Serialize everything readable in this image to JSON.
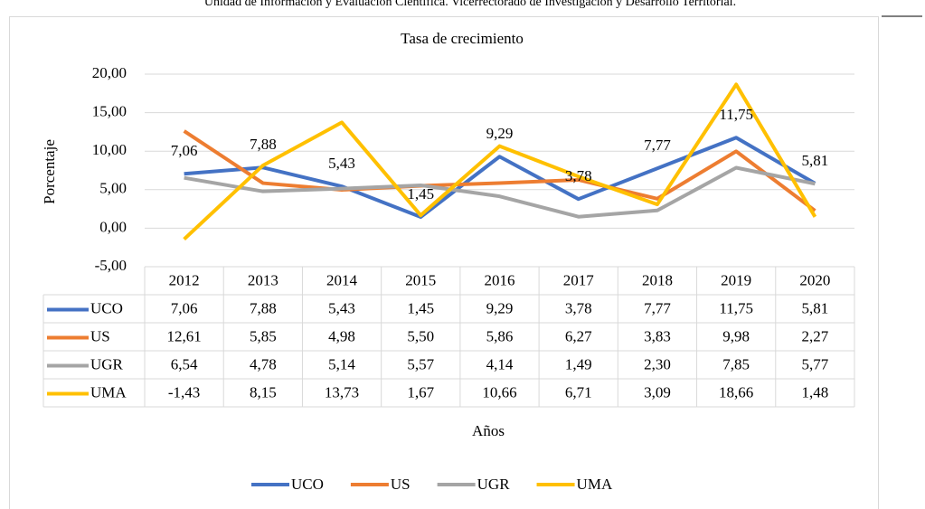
{
  "header": {
    "text": "Unidad de Información y Evaluación Científica. Vicerrectorado de Investigación y Desarrollo Territorial."
  },
  "chart_data": {
    "type": "line",
    "title": "Tasa de crecimiento",
    "ylabel": "Porcentaje",
    "xlabel": "Años",
    "categories": [
      "2012",
      "2013",
      "2014",
      "2015",
      "2016",
      "2017",
      "2018",
      "2019",
      "2020"
    ],
    "ylim": [
      -5,
      20
    ],
    "yticks": [
      {
        "value": -5,
        "label": "-5,00"
      },
      {
        "value": 0,
        "label": "0,00"
      },
      {
        "value": 5,
        "label": "5,00"
      },
      {
        "value": 10,
        "label": "10,00"
      },
      {
        "value": 15,
        "label": "15,00"
      },
      {
        "value": 20,
        "label": "20,00"
      }
    ],
    "grid": true,
    "legend": "bottom",
    "data_labels_series": 0,
    "series": [
      {
        "name": "UCO",
        "color": "#4472c4",
        "values": [
          7.06,
          7.88,
          5.43,
          1.45,
          9.29,
          3.78,
          7.77,
          11.75,
          5.81
        ],
        "value_labels": [
          "7,06",
          "7,88",
          "5,43",
          "1,45",
          "9,29",
          "3,78",
          "7,77",
          "11,75",
          "5,81"
        ]
      },
      {
        "name": "US",
        "color": "#ed7d31",
        "values": [
          12.61,
          5.85,
          4.98,
          5.5,
          5.86,
          6.27,
          3.83,
          9.98,
          2.27
        ],
        "value_labels": [
          "12,61",
          "5,85",
          "4,98",
          "5,50",
          "5,86",
          "6,27",
          "3,83",
          "9,98",
          "2,27"
        ]
      },
      {
        "name": "UGR",
        "color": "#a5a5a5",
        "values": [
          6.54,
          4.78,
          5.14,
          5.57,
          4.14,
          1.49,
          2.3,
          7.85,
          5.77
        ],
        "value_labels": [
          "6,54",
          "4,78",
          "5,14",
          "5,57",
          "4,14",
          "1,49",
          "2,30",
          "7,85",
          "5,77"
        ]
      },
      {
        "name": "UMA",
        "color": "#ffc000",
        "values": [
          -1.43,
          8.15,
          13.73,
          1.67,
          10.66,
          6.71,
          3.09,
          18.66,
          1.48
        ],
        "value_labels": [
          "-1,43",
          "8,15",
          "13,73",
          "1,67",
          "10,66",
          "6,71",
          "3,09",
          "18,66",
          "1,48"
        ]
      }
    ]
  }
}
